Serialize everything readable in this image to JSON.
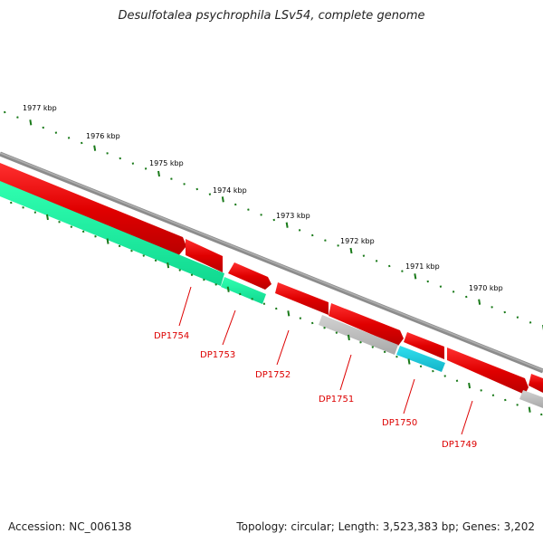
{
  "title": "Desulfotalea psychrophila LSv54, complete genome",
  "footer": {
    "accession": "Accession: NC_006138",
    "summary": "Topology: circular; Length: 3,523,383 bp; Genes: 3,202"
  },
  "colors": {
    "backbone": "#8a8a8a",
    "forward_gene": "#ee0000",
    "reverse_gene_teal": "#19f0a0",
    "reverse_gene_gray": "#b4b4b4",
    "reverse_gene_cyan": "#1cc8dc",
    "tick": "#1a7a1a",
    "label": "#dd0000"
  },
  "scale_labels": [
    "1977 kbp",
    "1976 kbp",
    "1975 kbp",
    "1974 kbp",
    "1973 kbp",
    "1972 kbp",
    "1971 kbp",
    "1970 kbp"
  ],
  "genes": [
    {
      "id": "DP1754",
      "label": "DP1754"
    },
    {
      "id": "DP1753",
      "label": "DP1753"
    },
    {
      "id": "DP1752",
      "label": "DP1752"
    },
    {
      "id": "DP1751",
      "label": "DP1751"
    },
    {
      "id": "DP1750",
      "label": "DP1750"
    },
    {
      "id": "DP1749",
      "label": "DP1749"
    }
  ]
}
